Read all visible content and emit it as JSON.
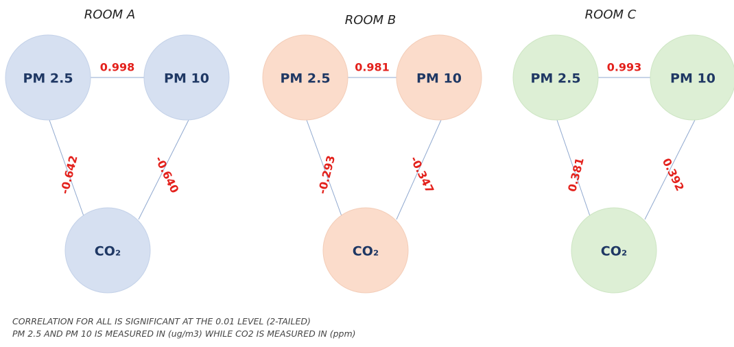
{
  "rooms": [
    {
      "title": "ROOM A",
      "nodes": [
        {
          "label": "PM 2.5"
        },
        {
          "label": "PM 10"
        },
        {
          "label": "CO₂"
        }
      ],
      "edges": [
        {
          "value": "0.998"
        },
        {
          "value": "-0.642"
        },
        {
          "value": "-0.640"
        }
      ]
    },
    {
      "title": "ROOM B",
      "nodes": [
        {
          "label": "PM 2.5"
        },
        {
          "label": "PM 10"
        },
        {
          "label": "CO₂"
        }
      ],
      "edges": [
        {
          "value": "0.981"
        },
        {
          "value": "-0.293"
        },
        {
          "value": "-0.347"
        }
      ]
    },
    {
      "title": "ROOM C",
      "nodes": [
        {
          "label": "PM 2.5"
        },
        {
          "label": "PM 10"
        },
        {
          "label": "CO₂"
        }
      ],
      "edges": [
        {
          "value": "0.993"
        },
        {
          "value": "0.381"
        },
        {
          "value": "0.392"
        }
      ]
    }
  ],
  "notes": [
    "CORRELATION FOR ALL IS SIGNIFICANT AT THE 0.01 LEVEL (2-TAILED)",
    "PM 2.5 AND PM 10 IS MEASURED IN (ug/m3)  WHILE CO2 IS MEASURED IN (ppm)"
  ]
}
